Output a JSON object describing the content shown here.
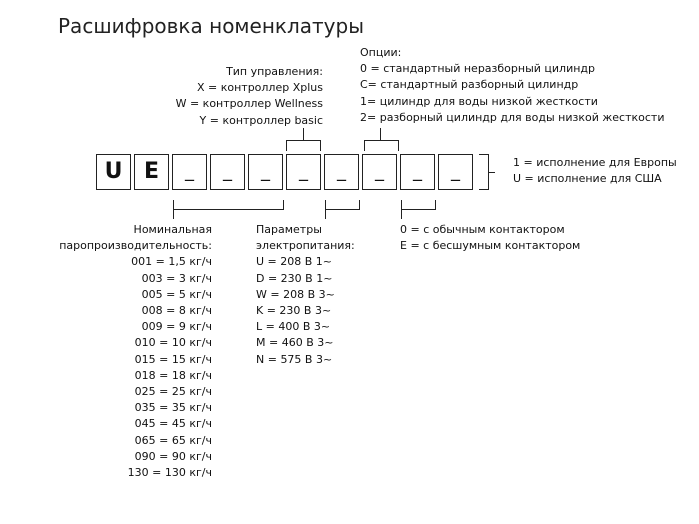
{
  "title": "Расшифровка номенклатуры",
  "code_boxes": [
    "U",
    "E",
    "_",
    "_",
    "_",
    "_",
    "_",
    "_",
    "_",
    "_"
  ],
  "control": {
    "heading": "Тип управления:",
    "items": [
      "X = контроллер Xplus",
      "W = контроллер Wellness",
      "Y = контроллер basic"
    ]
  },
  "options": {
    "heading": "Опции:",
    "items": [
      "0 = стандартный неразборный цилиндр",
      "C= стандартный разборный цилиндр",
      "1= цилиндр для воды низкой жесткости",
      "2= разборный цилиндр для воды низкой жесткости"
    ]
  },
  "region": {
    "items": [
      "1 = исполнение для Европы",
      "U = исполнение для США"
    ]
  },
  "capacity": {
    "heading": [
      "Номинальная",
      "паропроизводительность:"
    ],
    "items": [
      "001 = 1,5 кг/ч",
      "003 = 3 кг/ч",
      "005 = 5 кг/ч",
      "008 = 8 кг/ч",
      "009 = 9 кг/ч",
      "010 = 10 кг/ч",
      "015 = 15 кг/ч",
      "018 = 18 кг/ч",
      "025 = 25 кг/ч",
      "035 = 35 кг/ч",
      "045 = 45 кг/ч",
      "065 = 65 кг/ч",
      "090 = 90 кг/ч",
      "130 = 130 кг/ч"
    ]
  },
  "power": {
    "heading": [
      "Параметры",
      "электропитания:"
    ],
    "items": [
      "U = 208 В 1~",
      "D = 230 В 1~",
      "W = 208 В 3~",
      "K = 230 В 3~",
      "L = 400 В 3~",
      "M = 460 В 3~",
      "N = 575 В 3~"
    ]
  },
  "contactor": {
    "items": [
      "0 = с обычным контактором",
      "E = с бесшумным контактором"
    ]
  }
}
